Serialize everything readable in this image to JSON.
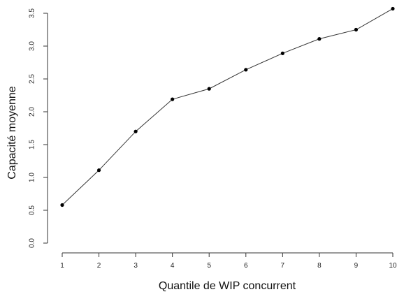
{
  "chart_data": {
    "type": "line",
    "title": "",
    "xlabel": "Quantile de WIP concurrent",
    "ylabel": "Capacité moyenne",
    "x": [
      1,
      2,
      3,
      4,
      5,
      6,
      7,
      8,
      9,
      10
    ],
    "series": [
      {
        "values": [
          0.58,
          1.11,
          1.7,
          2.19,
          2.35,
          2.64,
          2.89,
          3.11,
          3.25,
          3.57
        ]
      }
    ],
    "xlim": [
      1,
      10
    ],
    "ylim": [
      0,
      3.5
    ],
    "xticks": [
      "1",
      "2",
      "3",
      "4",
      "5",
      "6",
      "7",
      "8",
      "9",
      "10"
    ],
    "yticks": [
      "0.0",
      "0.5",
      "1.0",
      "1.5",
      "2.0",
      "2.5",
      "3.0",
      "3.5"
    ],
    "grid": false,
    "markers": "filled-circle",
    "line_color": "#333333",
    "marker_color": "#000000"
  }
}
